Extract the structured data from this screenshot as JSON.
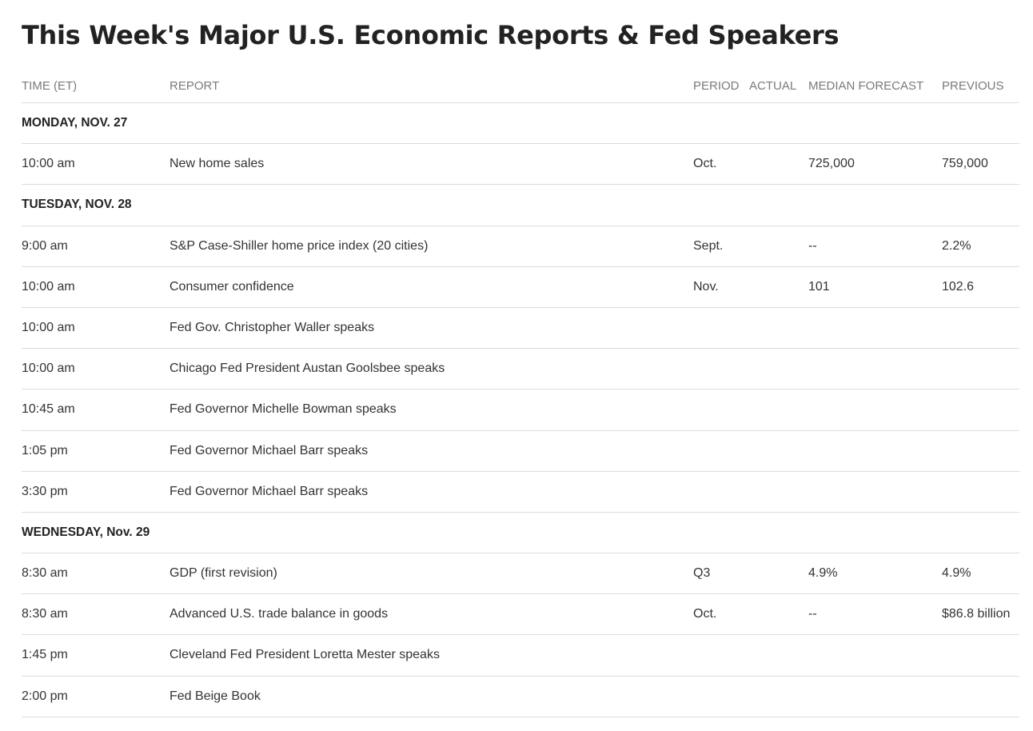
{
  "title": "This Week's Major U.S. Economic Reports & Fed Speakers",
  "columns": {
    "time": "TIME (ET)",
    "report": "REPORT",
    "period": "PERIOD",
    "actual": "ACTUAL",
    "median": "MEDIAN FORECAST",
    "previous": "PREVIOUS"
  },
  "days": [
    {
      "label": "MONDAY, NOV. 27",
      "events": [
        {
          "time": "10:00 am",
          "report": "New home sales",
          "period": "Oct.",
          "actual": "",
          "median": "725,000",
          "previous": "759,000"
        }
      ]
    },
    {
      "label": "TUESDAY, NOV. 28",
      "events": [
        {
          "time": "9:00 am",
          "report": "S&P Case-Shiller home price index (20 cities)",
          "period": "Sept.",
          "actual": "",
          "median": "--",
          "previous": "2.2%"
        },
        {
          "time": "10:00 am",
          "report": "Consumer confidence",
          "period": "Nov.",
          "actual": "",
          "median": "101",
          "previous": "102.6"
        },
        {
          "time": "10:00 am",
          "report": "Fed Gov. Christopher Waller speaks",
          "period": "",
          "actual": "",
          "median": "",
          "previous": ""
        },
        {
          "time": "10:00 am",
          "report": "Chicago Fed President Austan Goolsbee speaks",
          "period": "",
          "actual": "",
          "median": "",
          "previous": ""
        },
        {
          "time": "10:45 am",
          "report": "Fed Governor Michelle Bowman speaks",
          "period": "",
          "actual": "",
          "median": "",
          "previous": ""
        },
        {
          "time": "1:05 pm",
          "report": "Fed Governor Michael Barr speaks",
          "period": "",
          "actual": "",
          "median": "",
          "previous": ""
        },
        {
          "time": "3:30 pm",
          "report": "Fed Governor Michael Barr speaks",
          "period": "",
          "actual": "",
          "median": "",
          "previous": ""
        }
      ]
    },
    {
      "label": "WEDNESDAY, Nov. 29",
      "events": [
        {
          "time": "8:30 am",
          "report": "GDP (first revision)",
          "period": "Q3",
          "actual": "",
          "median": "4.9%",
          "previous": "4.9%"
        },
        {
          "time": "8:30 am",
          "report": "Advanced U.S. trade balance in goods",
          "period": "Oct.",
          "actual": "",
          "median": "--",
          "previous": "$86.8 billion"
        },
        {
          "time": "1:45 pm",
          "report": "Cleveland Fed President Loretta Mester speaks",
          "period": "",
          "actual": "",
          "median": "",
          "previous": ""
        },
        {
          "time": "2:00 pm",
          "report": "Fed Beige Book",
          "period": "",
          "actual": "",
          "median": "",
          "previous": ""
        }
      ]
    }
  ]
}
